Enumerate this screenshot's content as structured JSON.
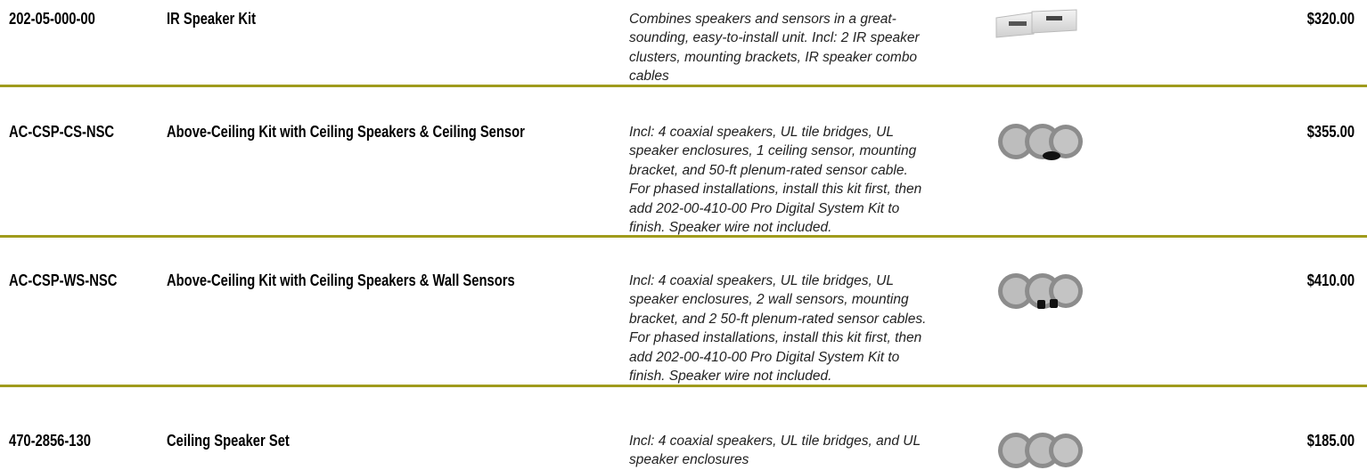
{
  "rows": [
    {
      "sku": "202-05-000-00",
      "name": "IR Speaker Kit",
      "description": [
        "Combines speakers and sensors in a great-",
        "sounding, easy-to-install unit. Incl: 2 IR speaker",
        "clusters, mounting brackets, IR speaker combo",
        "cables"
      ],
      "price": "$320.00"
    },
    {
      "sku": "AC-CSP-CS-NSC",
      "name": "Above-Ceiling Kit with Ceiling Speakers & Ceiling Sensor",
      "description": [
        "Incl: 4 coaxial speakers, UL tile bridges, UL",
        "speaker enclosures, 1 ceiling sensor, mounting",
        "bracket, and 50-ft plenum-rated sensor cable.",
        "For phased installations, install this kit first, then",
        "add 202-00-410-00 Pro Digital System Kit to",
        "finish. Speaker wire not included."
      ],
      "price": "$355.00"
    },
    {
      "sku": "AC-CSP-WS-NSC",
      "name": "Above-Ceiling Kit with Ceiling Speakers & Wall Sensors",
      "description": [
        "Incl: 4 coaxial speakers, UL tile bridges, UL",
        "speaker enclosures, 2 wall sensors, mounting",
        "bracket, and 2 50-ft plenum-rated sensor cables.",
        "For phased installations, install this kit first, then",
        "add 202-00-410-00 Pro Digital System Kit to",
        "finish. Speaker wire not included."
      ],
      "price": "$410.00"
    },
    {
      "sku": "470-2856-130",
      "name": "Ceiling Speaker Set",
      "description": [
        "Incl: 4 coaxial speakers, UL tile bridges, and UL",
        "speaker enclosures"
      ],
      "price": "$185.00"
    }
  ]
}
